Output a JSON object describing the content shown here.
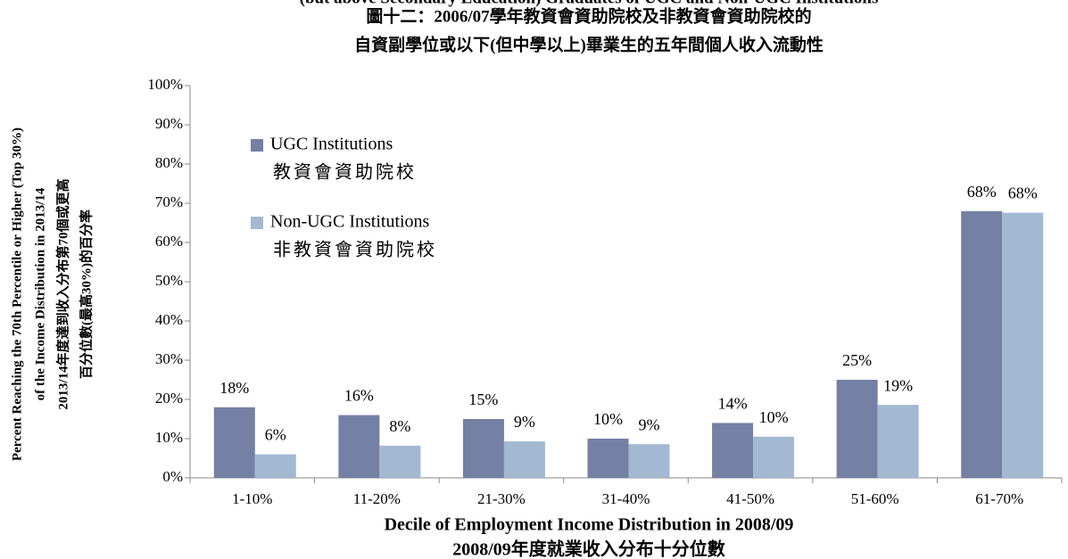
{
  "chart_data": {
    "type": "bar",
    "title": [
      "(but above Secondary Education) Graduates of UGC and Non-UGC Institutions",
      "圖十二：2006/07學年教資會資助院校及非教資會資助院校的",
      "自資副學位或以下(但中學以上)畢業生的五年間個人收入流動性"
    ],
    "y_label": [
      "Percent Reaching the 70th Percentile or Higher (Top 30%)",
      "of the Income Distribution in 2013/14",
      "2013/14年度達到收入分布第70個或更高",
      "百分位數(最高30%)的百分率"
    ],
    "x_label": [
      "Decile of Employment Income Distribution in 2008/09",
      "2008/09年度就業收入分布十分位數"
    ],
    "categories": [
      "1-10%",
      "11-20%",
      "21-30%",
      "31-40%",
      "41-50%",
      "51-60%",
      "61-70%"
    ],
    "series": [
      {
        "name": "UGC Institutions",
        "name_zh": "教資會資助院校",
        "color": "#7480a4",
        "values": [
          18,
          16,
          15,
          10,
          14,
          25,
          68
        ],
        "value_labels": [
          "18%",
          "16%",
          "15%",
          "10%",
          "14%",
          "25%",
          "68%"
        ]
      },
      {
        "name": "Non-UGC Institutions",
        "name_zh": "非教資會資助院校",
        "color": "#a3b9d1",
        "values": [
          6,
          8.2,
          9.3,
          8.6,
          10.5,
          18.6,
          67.6
        ],
        "value_labels": [
          "6%",
          "8%",
          "9%",
          "9%",
          "10%",
          "19%",
          "68%"
        ]
      }
    ],
    "ylim": [
      0,
      100
    ],
    "yticks": [
      {
        "value": 0,
        "label": "0%"
      },
      {
        "value": 10,
        "label": "10%"
      },
      {
        "value": 20,
        "label": "20%"
      },
      {
        "value": 30,
        "label": "30%"
      },
      {
        "value": 40,
        "label": "40%"
      },
      {
        "value": 50,
        "label": "50%"
      },
      {
        "value": 60,
        "label": "60%"
      },
      {
        "value": 70,
        "label": "70%"
      },
      {
        "value": 80,
        "label": "80%"
      },
      {
        "value": 90,
        "label": "90%"
      },
      {
        "value": 100,
        "label": "100%"
      }
    ],
    "grid": false
  }
}
